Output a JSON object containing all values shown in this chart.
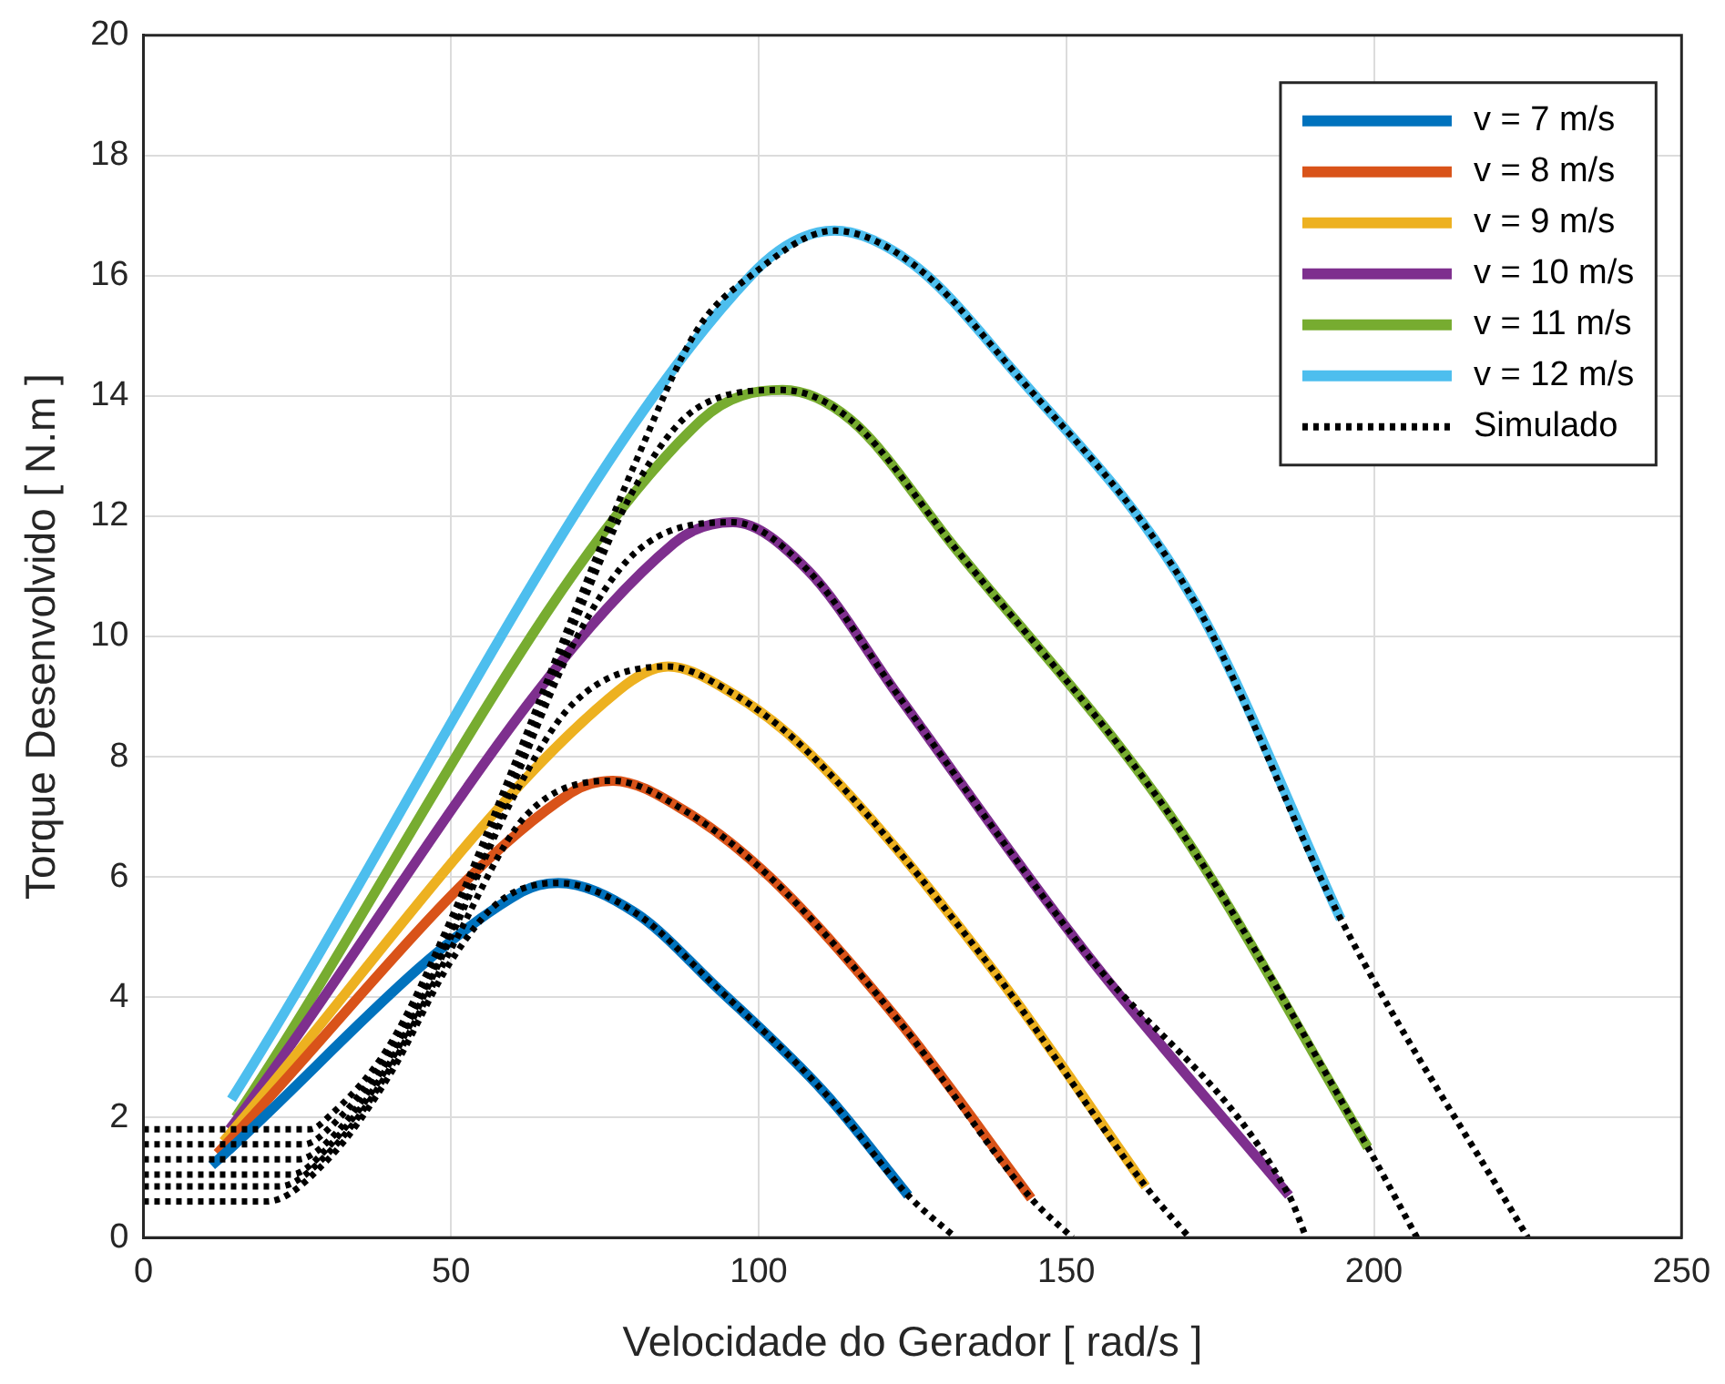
{
  "chart_data": {
    "type": "line",
    "xlabel": "Velocidade do Gerador [ rad/s ]",
    "ylabel": "Torque Desenvolvido [ N.m ]",
    "xlim": [
      0,
      250
    ],
    "xticks": [
      0,
      50,
      100,
      150,
      200,
      250
    ],
    "ylim": [
      0,
      20
    ],
    "yticks": [
      0,
      2,
      4,
      6,
      8,
      10,
      12,
      14,
      16,
      18,
      20
    ],
    "grid": true,
    "legend": "top right",
    "marker": "none",
    "series": [
      {
        "name": "v = 7 m/s",
        "color": "#0072bd",
        "line_style": "solid",
        "x": [
          11.1,
          61.5,
          67.4,
          80,
          92.8,
          110.8,
          124.3
        ],
        "values": [
          1.2,
          5.75,
          5.9,
          5.4,
          4.2,
          2.4,
          0.7
        ]
      },
      {
        "name": "v = 8 m/s",
        "color": "#d95319",
        "line_style": "solid",
        "x": [
          12,
          69.5,
          76.3,
          88,
          101.8,
          122.8,
          144.3
        ],
        "values": [
          1.4,
          7.4,
          7.6,
          7.1,
          6.0,
          3.6,
          0.65
        ]
      },
      {
        "name": "v = 9 m/s",
        "color": "#edb120",
        "line_style": "solid",
        "x": [
          13,
          77.2,
          85.3,
          95,
          107.8,
          137.7,
          162.9
        ],
        "values": [
          1.6,
          9.1,
          9.5,
          9.1,
          8.1,
          4.5,
          0.85
        ]
      },
      {
        "name": "v = 10 m/s",
        "color": "#7e2f8e",
        "line_style": "solid",
        "x": [
          14,
          86.2,
          95.8,
          108,
          122.8,
          152.7,
          186.2
        ],
        "values": [
          1.8,
          11.55,
          11.9,
          11.1,
          9.0,
          4.8,
          0.7
        ]
      },
      {
        "name": "v = 11 m/s",
        "color": "#77ac30",
        "line_style": "solid",
        "x": [
          15,
          90.7,
          103.9,
          115,
          131.7,
          167.7,
          199
        ],
        "values": [
          2.0,
          13.6,
          14.1,
          13.6,
          11.5,
          6.9,
          1.5
        ]
      },
      {
        "name": "v = 12 m/s",
        "color": "#4dbeee",
        "line_style": "solid",
        "x": [
          14.3,
          98.7,
          112.3,
          125,
          140.7,
          170.7,
          194.6
        ],
        "values": [
          2.3,
          16.0,
          16.75,
          16.2,
          14.5,
          10.6,
          5.3
        ]
      },
      {
        "name": "Simulado",
        "color": "#000000",
        "line_style": "dotted",
        "x": [
          0,
          20,
          30,
          40,
          50,
          58,
          67.4,
          80,
          92.8,
          110.8,
          124.3,
          132
        ],
        "values": [
          0.6,
          0.6,
          1.3,
          2.7,
          4.6,
          5.6,
          5.9,
          5.4,
          4.2,
          2.4,
          0.7,
          0
        ]
      },
      {
        "color": "#000000",
        "line_style": "dotted",
        "x": [
          0,
          22,
          30,
          40,
          50,
          62,
          76.3,
          88,
          101.8,
          122.8,
          144.3,
          151
        ],
        "values": [
          0.85,
          0.85,
          1.4,
          2.8,
          4.8,
          7.0,
          7.6,
          7.1,
          6.0,
          3.6,
          0.65,
          0
        ]
      },
      {
        "color": "#000000",
        "line_style": "dotted",
        "x": [
          0,
          24,
          30,
          40,
          50,
          60,
          70,
          85.3,
          95,
          107.8,
          137.7,
          162.9,
          170
        ],
        "values": [
          1.05,
          1.05,
          1.5,
          2.9,
          5.0,
          7.3,
          8.9,
          9.5,
          9.1,
          8.1,
          4.5,
          0.85,
          0
        ]
      },
      {
        "color": "#000000",
        "line_style": "dotted",
        "x": [
          0,
          25,
          30,
          40,
          50,
          60,
          70,
          80,
          95.8,
          108,
          122.8,
          152.7,
          186.2,
          189
        ],
        "values": [
          1.3,
          1.3,
          1.6,
          3.0,
          5.1,
          7.5,
          9.9,
          11.4,
          11.9,
          11.1,
          9.0,
          4.8,
          0.7,
          0
        ]
      },
      {
        "color": "#000000",
        "line_style": "dotted",
        "x": [
          0,
          26,
          30,
          40,
          50,
          60,
          70,
          80,
          90,
          103.9,
          115,
          131.7,
          167.7,
          199,
          207
        ],
        "values": [
          1.55,
          1.55,
          1.8,
          3.1,
          5.2,
          7.6,
          10.2,
          12.5,
          13.8,
          14.1,
          13.6,
          11.5,
          6.9,
          1.5,
          0
        ]
      },
      {
        "color": "#000000",
        "line_style": "dotted",
        "x": [
          0,
          27,
          30,
          40,
          50,
          60,
          70,
          80,
          90,
          98.7,
          112.3,
          125,
          140.7,
          170.7,
          194.6,
          225
        ],
        "values": [
          1.8,
          1.8,
          2.0,
          3.2,
          5.3,
          7.8,
          10.4,
          12.9,
          15.1,
          16.0,
          16.75,
          16.2,
          14.5,
          10.6,
          5.3,
          0
        ]
      }
    ]
  }
}
